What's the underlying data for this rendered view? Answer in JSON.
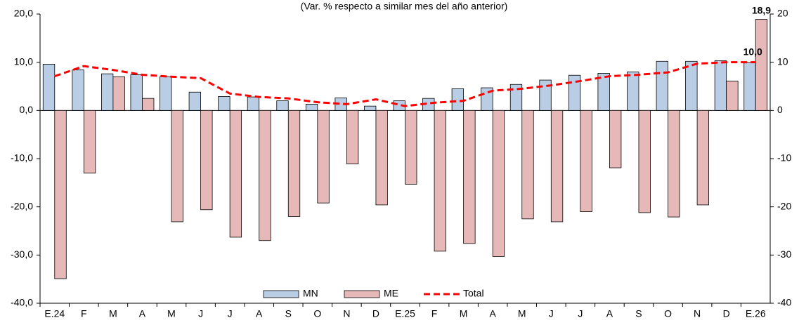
{
  "chart_data": {
    "type": "bar-line",
    "subtitle": "(Var. % respecto a similar mes del año anterior)",
    "categories": [
      "E.24",
      "F",
      "M",
      "A",
      "M",
      "J",
      "J",
      "A",
      "S",
      "O",
      "N",
      "D",
      "E.25",
      "F",
      "M",
      "A",
      "M",
      "J",
      "J",
      "A",
      "S",
      "O",
      "N",
      "D",
      "E.26"
    ],
    "series": [
      {
        "name": "MN",
        "type": "bar",
        "color": "#b9cde5",
        "values": [
          9.6,
          8.4,
          7.6,
          7.4,
          7.0,
          3.8,
          2.9,
          2.8,
          2.0,
          1.3,
          2.6,
          0.9,
          2.0,
          2.5,
          4.5,
          4.7,
          5.4,
          6.3,
          7.3,
          7.7,
          8.0,
          10.2,
          10.2,
          10.3,
          9.9
        ]
      },
      {
        "name": "ME",
        "type": "bar",
        "color": "#e6b9b8",
        "values": [
          -34.9,
          -13.0,
          7.0,
          2.5,
          -23.1,
          -20.6,
          -26.3,
          -27.0,
          -22.0,
          -19.2,
          -11.1,
          -19.6,
          -15.3,
          -29.2,
          -27.6,
          -30.3,
          -22.5,
          -23.1,
          -21.0,
          -11.9,
          -21.2,
          -22.1,
          -19.6,
          6.1,
          18.9
        ],
        "value_labels": [
          null,
          null,
          null,
          null,
          null,
          null,
          null,
          null,
          null,
          null,
          null,
          null,
          null,
          null,
          null,
          null,
          null,
          null,
          null,
          null,
          null,
          null,
          null,
          null,
          "18,9"
        ]
      },
      {
        "name": "Total",
        "type": "line",
        "color": "#ff0000",
        "values": [
          7.1,
          9.2,
          8.4,
          7.4,
          7.0,
          6.7,
          3.5,
          2.8,
          2.5,
          1.7,
          1.3,
          2.3,
          0.9,
          1.6,
          2.0,
          4.1,
          4.5,
          5.2,
          6.1,
          7.1,
          7.4,
          7.9,
          9.7,
          10.0,
          10.0
        ],
        "value_labels": [
          null,
          null,
          null,
          null,
          null,
          null,
          null,
          null,
          null,
          null,
          null,
          null,
          null,
          null,
          null,
          null,
          null,
          null,
          null,
          null,
          null,
          null,
          null,
          null,
          "10,0"
        ]
      }
    ],
    "ylim": [
      -40,
      20
    ],
    "yticks": [
      {
        "value": 20,
        "label": "20,0"
      },
      {
        "value": 10,
        "label": "10,0"
      },
      {
        "value": 0,
        "label": "0,0"
      },
      {
        "value": -10,
        "label": "-10,0"
      },
      {
        "value": -20,
        "label": "-20,0"
      },
      {
        "value": -30,
        "label": "-30,0"
      },
      {
        "value": -40,
        "label": "-40,0"
      }
    ],
    "y2lim": [
      -40,
      20
    ],
    "y2ticks": [
      20,
      10,
      0,
      -10,
      -20,
      -30,
      -40
    ],
    "grid": false,
    "legend": "bottom"
  }
}
